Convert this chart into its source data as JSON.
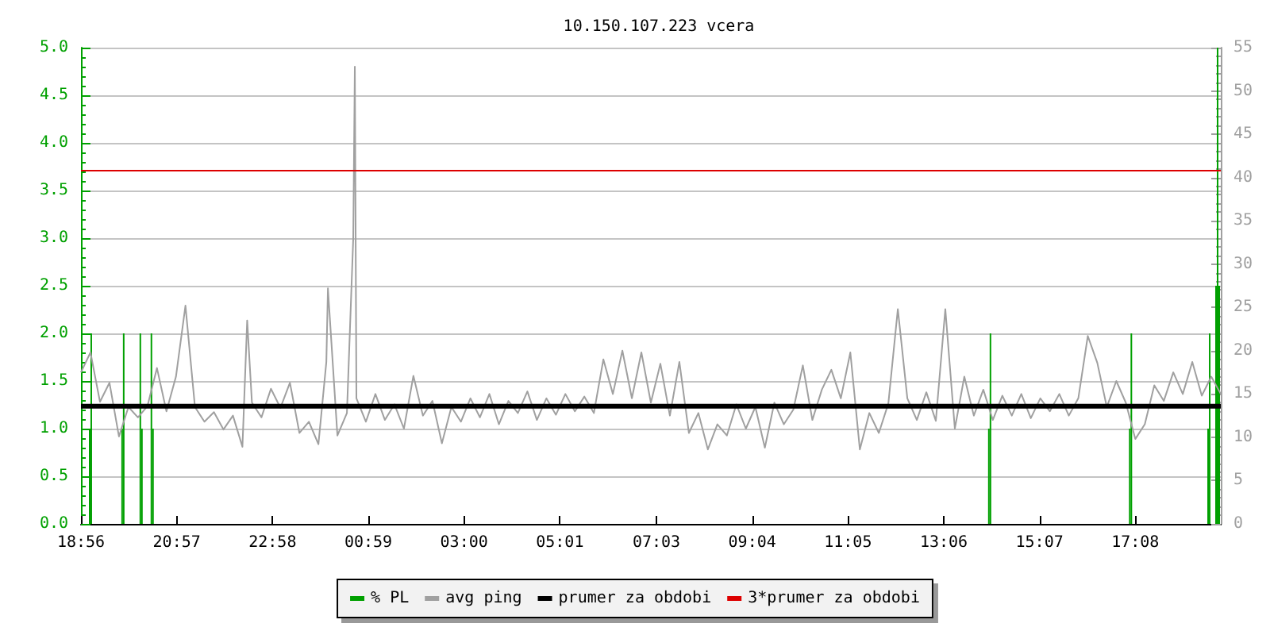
{
  "chart_data": {
    "type": "line",
    "title": "10.150.107.223 vcera",
    "xlim": [
      "2000-01-01T18:56",
      "2000-01-02T18:56"
    ],
    "xticks": [
      {
        "value": "2000-01-01T18:56",
        "label": "18:56"
      },
      {
        "value": "2000-01-01T20:57",
        "label": "20:57"
      },
      {
        "value": "2000-01-01T22:58",
        "label": "22:58"
      },
      {
        "value": "2000-01-02T00:59",
        "label": "00:59"
      },
      {
        "value": "2000-01-02T03:00",
        "label": "03:00"
      },
      {
        "value": "2000-01-02T05:01",
        "label": "05:01"
      },
      {
        "value": "2000-01-02T07:03",
        "label": "07:03"
      },
      {
        "value": "2000-01-02T09:04",
        "label": "09:04"
      },
      {
        "value": "2000-01-02T11:05",
        "label": "11:05"
      },
      {
        "value": "2000-01-02T13:06",
        "label": "13:06"
      },
      {
        "value": "2000-01-02T15:07",
        "label": "15:07"
      },
      {
        "value": "2000-01-02T17:08",
        "label": "17:08"
      }
    ],
    "ylim": [
      0,
      5
    ],
    "yticks": [
      {
        "value": 0,
        "label": "0.0"
      },
      0.5,
      {
        "value": 1,
        "label": "1.0"
      },
      1.5,
      {
        "value": 2,
        "label": "2.0"
      },
      2.5,
      {
        "value": 3,
        "label": "3.0"
      },
      3.5,
      {
        "value": 4,
        "label": "4.0"
      },
      4.5,
      {
        "value": 5,
        "label": "5.0"
      }
    ],
    "y2lim": [
      0,
      55
    ],
    "y2ticks": [
      0,
      5,
      10,
      15,
      20,
      25,
      30,
      35,
      40,
      45,
      50,
      55
    ],
    "grid": "y",
    "legend": "bottom",
    "marker": "none",
    "series": [
      {
        "name": "% PL",
        "type": "bar",
        "color": "#00a000",
        "x": [
          "2000-01-01T19:07",
          "2000-01-01T19:09",
          "2000-01-01T19:48",
          "2000-01-01T19:50",
          "2000-01-01T20:11",
          "2000-01-01T20:13",
          "2000-01-01T20:25",
          "2000-01-01T20:27",
          "2000-01-02T14:03",
          "2000-01-02T14:05",
          "2000-01-02T17:01",
          "2000-01-02T17:03",
          "2000-01-02T18:40",
          "2000-01-02T18:42",
          "2000-01-02T18:50",
          "2000-01-02T18:52",
          "2000-01-02T18:54"
        ],
        "values": [
          1.0,
          2.0,
          1.0,
          2.0,
          2.0,
          1.0,
          2.0,
          1.0,
          1.0,
          2.0,
          1.0,
          2.0,
          1.0,
          2.0,
          2.5,
          5.0,
          2.5
        ]
      },
      {
        "name": "avg ping",
        "axis": "y2",
        "color": "#a0a0a0",
        "x": [
          "2000-01-01T18:56",
          "2000-01-01T19:08",
          "2000-01-01T19:20",
          "2000-01-01T19:32",
          "2000-01-01T19:44",
          "2000-01-01T19:56",
          "2000-01-01T20:08",
          "2000-01-01T20:20",
          "2000-01-01T20:32",
          "2000-01-01T20:44",
          "2000-01-01T20:56",
          "2000-01-01T21:08",
          "2000-01-01T21:20",
          "2000-01-01T21:32",
          "2000-01-01T21:44",
          "2000-01-01T21:56",
          "2000-01-01T22:08",
          "2000-01-01T22:20",
          "2000-01-01T22:26",
          "2000-01-01T22:32",
          "2000-01-01T22:44",
          "2000-01-01T22:56",
          "2000-01-01T23:08",
          "2000-01-01T23:20",
          "2000-01-01T23:32",
          "2000-01-01T23:44",
          "2000-01-01T23:56",
          "2000-01-02T00:06",
          "2000-01-02T00:08",
          "2000-01-02T00:20",
          "2000-01-02T00:32",
          "2000-01-02T00:40",
          "2000-01-02T00:42",
          "2000-01-02T00:44",
          "2000-01-02T00:56",
          "2000-01-02T01:08",
          "2000-01-02T01:20",
          "2000-01-02T01:32",
          "2000-01-02T01:44",
          "2000-01-02T01:56",
          "2000-01-02T02:08",
          "2000-01-02T02:20",
          "2000-01-02T02:32",
          "2000-01-02T02:44",
          "2000-01-02T02:56",
          "2000-01-02T03:08",
          "2000-01-02T03:20",
          "2000-01-02T03:32",
          "2000-01-02T03:44",
          "2000-01-02T03:56",
          "2000-01-02T04:08",
          "2000-01-02T04:20",
          "2000-01-02T04:32",
          "2000-01-02T04:44",
          "2000-01-02T04:56",
          "2000-01-02T05:08",
          "2000-01-02T05:20",
          "2000-01-02T05:32",
          "2000-01-02T05:44",
          "2000-01-02T05:56",
          "2000-01-02T06:08",
          "2000-01-02T06:20",
          "2000-01-02T06:32",
          "2000-01-02T06:44",
          "2000-01-02T06:56",
          "2000-01-02T07:08",
          "2000-01-02T07:20",
          "2000-01-02T07:32",
          "2000-01-02T07:44",
          "2000-01-02T07:56",
          "2000-01-02T08:08",
          "2000-01-02T08:20",
          "2000-01-02T08:32",
          "2000-01-02T08:44",
          "2000-01-02T08:56",
          "2000-01-02T09:08",
          "2000-01-02T09:20",
          "2000-01-02T09:32",
          "2000-01-02T09:44",
          "2000-01-02T09:56",
          "2000-01-02T10:08",
          "2000-01-02T10:20",
          "2000-01-02T10:32",
          "2000-01-02T10:44",
          "2000-01-02T10:56",
          "2000-01-02T11:08",
          "2000-01-02T11:20",
          "2000-01-02T11:32",
          "2000-01-02T11:44",
          "2000-01-02T11:56",
          "2000-01-02T12:08",
          "2000-01-02T12:20",
          "2000-01-02T12:32",
          "2000-01-02T12:44",
          "2000-01-02T12:56",
          "2000-01-02T13:08",
          "2000-01-02T13:20",
          "2000-01-02T13:32",
          "2000-01-02T13:44",
          "2000-01-02T13:56",
          "2000-01-02T14:08",
          "2000-01-02T14:20",
          "2000-01-02T14:32",
          "2000-01-02T14:44",
          "2000-01-02T14:56",
          "2000-01-02T15:08",
          "2000-01-02T15:20",
          "2000-01-02T15:32",
          "2000-01-02T15:44",
          "2000-01-02T15:56",
          "2000-01-02T16:08",
          "2000-01-02T16:20",
          "2000-01-02T16:32",
          "2000-01-02T16:44",
          "2000-01-02T16:56",
          "2000-01-02T17:08",
          "2000-01-02T17:20",
          "2000-01-02T17:32",
          "2000-01-02T17:44",
          "2000-01-02T17:56",
          "2000-01-02T18:08",
          "2000-01-02T18:20",
          "2000-01-02T18:32",
          "2000-01-02T18:44",
          "2000-01-02T18:56"
        ],
        "values": [
          17.5,
          19.8,
          14.1,
          16.3,
          10.1,
          13.5,
          12.3,
          13.6,
          18.0,
          13.0,
          17.0,
          25.2,
          13.5,
          11.8,
          12.9,
          10.9,
          12.5,
          8.9,
          23.5,
          14.0,
          12.3,
          15.6,
          13.4,
          16.3,
          10.5,
          11.8,
          9.2,
          18.7,
          27.2,
          10.2,
          12.8,
          33.0,
          52.8,
          14.5,
          11.8,
          15.0,
          12.0,
          13.8,
          11.0,
          17.1,
          12.5,
          14.2,
          9.3,
          13.5,
          11.8,
          14.5,
          12.3,
          15.0,
          11.5,
          14.2,
          12.8,
          15.3,
          12.0,
          14.5,
          12.6,
          15.0,
          13.0,
          14.7,
          12.8,
          19.0,
          15.0,
          20.0,
          14.5,
          19.8,
          14.0,
          18.5,
          12.5,
          18.7,
          10.5,
          12.8,
          8.6,
          11.5,
          10.2,
          13.8,
          11.0,
          13.5,
          8.8,
          14.0,
          11.5,
          13.2,
          18.3,
          12.0,
          15.5,
          17.8,
          14.5,
          19.8,
          8.6,
          12.8,
          10.5,
          13.9,
          24.8,
          14.5,
          12.0,
          15.2,
          11.9,
          24.8,
          11.0,
          17.0,
          12.5,
          15.5,
          12.0,
          14.8,
          12.5,
          15.0,
          12.2,
          14.5,
          13.0,
          15.0,
          12.5,
          14.5,
          21.7,
          18.6,
          13.5,
          16.5,
          14.0,
          9.8,
          11.5,
          16.0,
          14.2,
          17.5,
          15.0,
          18.7,
          14.8,
          17.0,
          15.0
        ]
      }
    ],
    "ref_lines": [
      {
        "axis": "y2",
        "value": 13.6,
        "label": "prumer za obdobi",
        "color": "#000000"
      },
      {
        "axis": "y2",
        "value": 40.8,
        "label": "3*prumer za obdobi",
        "color": "#dd0000"
      }
    ]
  }
}
